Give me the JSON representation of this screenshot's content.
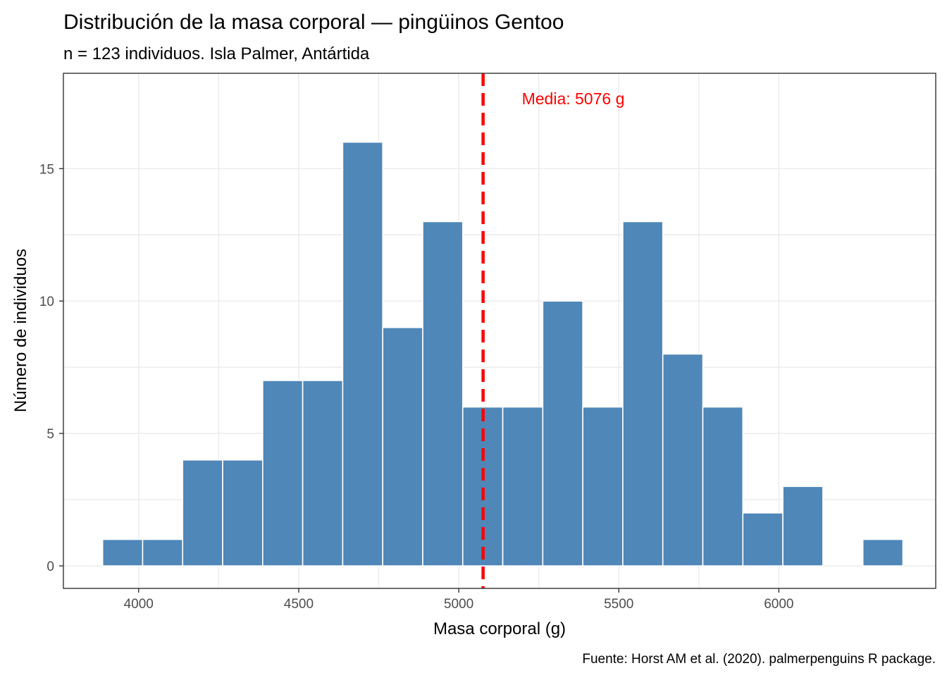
{
  "chart_data": {
    "type": "bar",
    "subtype": "histogram",
    "title": "Distribución de la masa corporal — pingüinos Gentoo",
    "subtitle": "n = 123 individuos. Isla Palmer, Antártida",
    "xlabel": "Masa corporal (g)",
    "ylabel": "Número de individuos",
    "caption": "Fuente: Horst AM et al. (2020). palmerpenguins R package.",
    "xlim": [
      3765,
      6490
    ],
    "ylim": [
      -0.85,
      18.6
    ],
    "xticks": [
      4000,
      4500,
      5000,
      5500,
      6000
    ],
    "xtick_labels": [
      "4000",
      "4500",
      "5000",
      "5500",
      "6000"
    ],
    "yticks": [
      0,
      5,
      10,
      15
    ],
    "ytick_labels": [
      "0",
      "5",
      "10",
      "15"
    ],
    "bins": [
      {
        "x0": 3887.5,
        "x1": 4012.5,
        "count": 1
      },
      {
        "x0": 4012.5,
        "x1": 4137.5,
        "count": 1
      },
      {
        "x0": 4137.5,
        "x1": 4262.5,
        "count": 4
      },
      {
        "x0": 4262.5,
        "x1": 4387.5,
        "count": 4
      },
      {
        "x0": 4387.5,
        "x1": 4512.5,
        "count": 7
      },
      {
        "x0": 4512.5,
        "x1": 4637.5,
        "count": 7
      },
      {
        "x0": 4637.5,
        "x1": 4762.5,
        "count": 16
      },
      {
        "x0": 4762.5,
        "x1": 4887.5,
        "count": 9
      },
      {
        "x0": 4887.5,
        "x1": 5012.5,
        "count": 13
      },
      {
        "x0": 5012.5,
        "x1": 5137.5,
        "count": 6
      },
      {
        "x0": 5137.5,
        "x1": 5262.5,
        "count": 6
      },
      {
        "x0": 5262.5,
        "x1": 5387.5,
        "count": 10
      },
      {
        "x0": 5387.5,
        "x1": 5512.5,
        "count": 6
      },
      {
        "x0": 5512.5,
        "x1": 5637.5,
        "count": 13
      },
      {
        "x0": 5637.5,
        "x1": 5762.5,
        "count": 8
      },
      {
        "x0": 5762.5,
        "x1": 5887.5,
        "count": 6
      },
      {
        "x0": 5887.5,
        "x1": 6012.5,
        "count": 2
      },
      {
        "x0": 6012.5,
        "x1": 6137.5,
        "count": 3
      },
      {
        "x0": 6137.5,
        "x1": 6262.5,
        "count": 0
      },
      {
        "x0": 6262.5,
        "x1": 6387.5,
        "count": 1
      }
    ],
    "mean_line": {
      "x": 5076,
      "label": "Media: 5076 g",
      "style": "dashed"
    },
    "grid": true,
    "legend": "none"
  },
  "colors": {
    "bar_fill": "#4f87b8",
    "mean_line": "#ff0000",
    "annotation": "#ff0000"
  }
}
